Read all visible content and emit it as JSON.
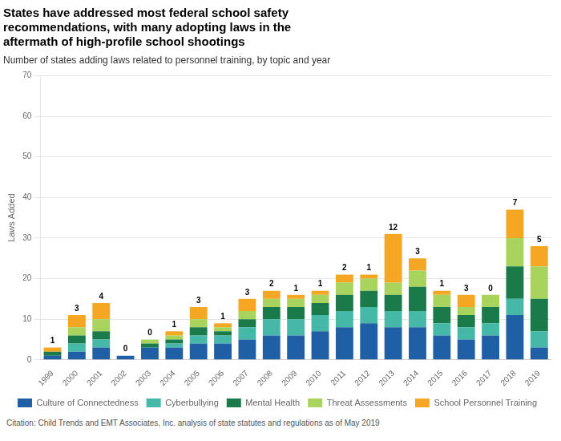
{
  "chart_data": {
    "type": "bar",
    "title": "States have addressed most federal school safety\nrecommendations, with many adopting laws in the\naftermath of high-profile school shootings",
    "subtitle": "Number of states adding laws related to personnel training, by topic and year",
    "y_label": "Laws Added",
    "categories": [
      "1999",
      "2000",
      "2001",
      "2002",
      "2003",
      "2004",
      "2005",
      "2006",
      "2007",
      "2008",
      "2009",
      "2010",
      "2011",
      "2012",
      "2013",
      "2014",
      "2015",
      "2016",
      "2017",
      "2018",
      "2019"
    ],
    "series": [
      {
        "name": "Culture of Connectedness",
        "color": "#1f5fa6",
        "values": [
          1,
          2,
          3,
          1,
          3,
          3,
          4,
          4,
          5,
          6,
          6,
          7,
          8,
          9,
          8,
          8,
          6,
          5,
          6,
          11,
          3
        ]
      },
      {
        "name": "Cyberbullying",
        "color": "#46b8a8",
        "values": [
          0,
          2,
          2,
          0,
          0,
          1,
          2,
          2,
          3,
          4,
          4,
          4,
          4,
          4,
          4,
          4,
          3,
          3,
          3,
          4,
          4
        ]
      },
      {
        "name": "Mental Health",
        "color": "#1a7a4a",
        "values": [
          1,
          2,
          2,
          0,
          1,
          1,
          2,
          1,
          2,
          3,
          3,
          3,
          4,
          4,
          4,
          6,
          4,
          3,
          4,
          8,
          8
        ]
      },
      {
        "name": "Threat Assessments",
        "color": "#a8d45e",
        "values": [
          0,
          2,
          3,
          0,
          1,
          1,
          2,
          1,
          2,
          2,
          2,
          2,
          3,
          3,
          3,
          4,
          3,
          2,
          3,
          7,
          8
        ]
      },
      {
        "name": "School Personnel Training",
        "color": "#f5a623",
        "values": [
          1,
          3,
          4,
          0,
          0,
          1,
          3,
          1,
          3,
          2,
          1,
          1,
          2,
          1,
          12,
          3,
          1,
          3,
          0,
          7,
          5
        ],
        "data_labels": true
      }
    ],
    "stacked": true,
    "ylim": [
      0,
      70
    ],
    "yticks": [
      0,
      10,
      20,
      30,
      40,
      50,
      60,
      70
    ],
    "grid": true,
    "legend": "bottom",
    "annotations": [
      "Citation: Child Trends and EMT Associates, Inc. analysis of state statutes and regulations as of May 2019"
    ]
  }
}
